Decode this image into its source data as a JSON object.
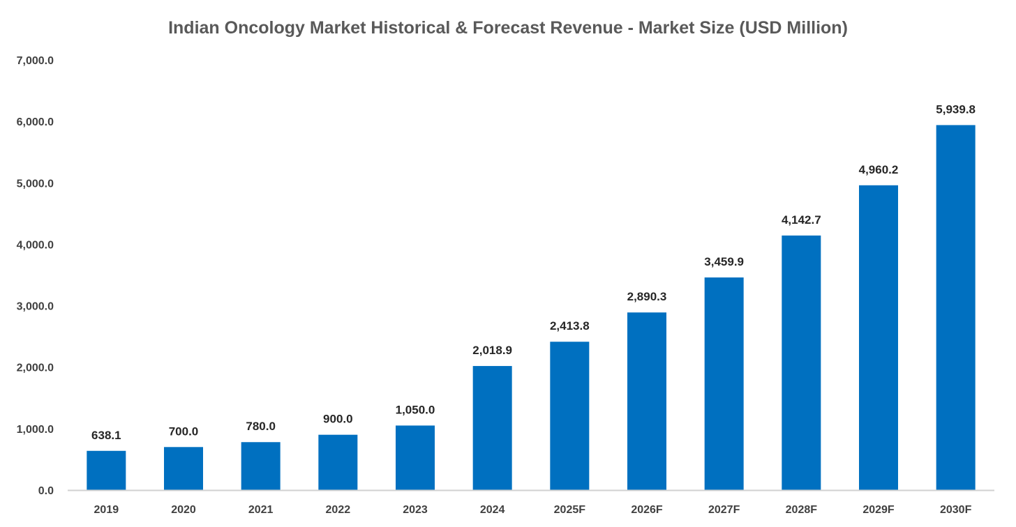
{
  "chart_data": {
    "type": "bar",
    "title": "Indian Oncology Market Historical & Forecast Revenue - Market Size (USD Million)",
    "xlabel": "",
    "ylabel": "",
    "categories": [
      "2019",
      "2020",
      "2021",
      "2022",
      "2023",
      "2024",
      "2025F",
      "2026F",
      "2027F",
      "2028F",
      "2029F",
      "2030F"
    ],
    "values": [
      638.1,
      700.0,
      780.0,
      900.0,
      1050.0,
      2018.9,
      2413.8,
      2890.3,
      3459.9,
      4142.7,
      4960.2,
      5939.8
    ],
    "value_labels": [
      "638.1",
      "700.0",
      "780.0",
      "900.0",
      "1,050.0",
      "2,018.9",
      "2,413.8",
      "2,890.3",
      "3,459.9",
      "4,142.7",
      "4,960.2",
      "5,939.8"
    ],
    "ylim": [
      0,
      7000
    ],
    "y_ticks": [
      "0.0",
      "1,000.0",
      "2,000.0",
      "3,000.0",
      "4,000.0",
      "5,000.0",
      "6,000.0",
      "7,000.0"
    ],
    "grid": false,
    "legend": "none",
    "bar_color": "#0070C0"
  }
}
